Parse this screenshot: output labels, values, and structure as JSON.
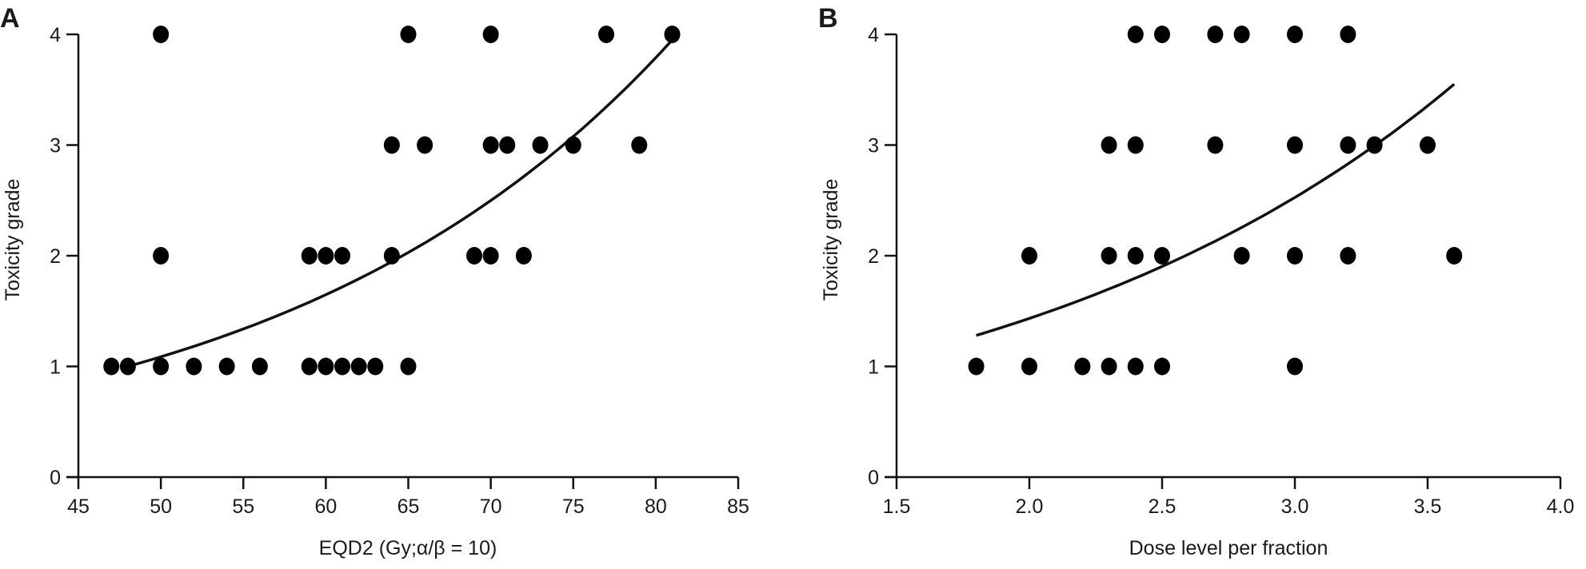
{
  "chart_data": [
    {
      "type": "scatter",
      "panel_label": "A",
      "xlabel": "EQD2 (Gy;α/β = 10)",
      "ylabel": "Toxicity grade",
      "xlim": [
        45,
        85
      ],
      "ylim": [
        0,
        4
      ],
      "xticks": [
        "45",
        "50",
        "55",
        "60",
        "65",
        "70",
        "75",
        "80",
        "85"
      ],
      "yticks": [
        "0",
        "1",
        "2",
        "3",
        "4"
      ],
      "grid": false,
      "points": [
        [
          50,
          4
        ],
        [
          65,
          4
        ],
        [
          70,
          4
        ],
        [
          77,
          4
        ],
        [
          81,
          4
        ],
        [
          64,
          3
        ],
        [
          66,
          3
        ],
        [
          70,
          3
        ],
        [
          71,
          3
        ],
        [
          73,
          3
        ],
        [
          75,
          3
        ],
        [
          79,
          3
        ],
        [
          50,
          2
        ],
        [
          59,
          2
        ],
        [
          60,
          2
        ],
        [
          61,
          2
        ],
        [
          64,
          2
        ],
        [
          69,
          2
        ],
        [
          70,
          2
        ],
        [
          72,
          2
        ],
        [
          47,
          1
        ],
        [
          48,
          1
        ],
        [
          50,
          1
        ],
        [
          52,
          1
        ],
        [
          54,
          1
        ],
        [
          56,
          1
        ],
        [
          59,
          1
        ],
        [
          60,
          1
        ],
        [
          61,
          1
        ],
        [
          62,
          1
        ],
        [
          63,
          1
        ],
        [
          65,
          1
        ]
      ],
      "fit": {
        "type": "exponential",
        "x_range": [
          48,
          81
        ],
        "y_start": 1.0,
        "y_end": 3.95
      }
    },
    {
      "type": "scatter",
      "panel_label": "B",
      "xlabel": "Dose level per fraction",
      "ylabel": "Toxicity grade",
      "xlim": [
        1.5,
        4.0
      ],
      "ylim": [
        0,
        4
      ],
      "xticks": [
        "1.5",
        "2.0",
        "2.5",
        "3.0",
        "3.5",
        "4.0"
      ],
      "yticks": [
        "0",
        "1",
        "2",
        "3",
        "4"
      ],
      "grid": false,
      "points": [
        [
          2.4,
          4
        ],
        [
          2.5,
          4
        ],
        [
          2.7,
          4
        ],
        [
          2.8,
          4
        ],
        [
          3.0,
          4
        ],
        [
          3.2,
          4
        ],
        [
          2.3,
          3
        ],
        [
          2.4,
          3
        ],
        [
          2.7,
          3
        ],
        [
          3.0,
          3
        ],
        [
          3.2,
          3
        ],
        [
          3.3,
          3
        ],
        [
          3.5,
          3
        ],
        [
          2.0,
          2
        ],
        [
          2.3,
          2
        ],
        [
          2.4,
          2
        ],
        [
          2.5,
          2
        ],
        [
          2.8,
          2
        ],
        [
          3.0,
          2
        ],
        [
          3.2,
          2
        ],
        [
          3.6,
          2
        ],
        [
          1.8,
          1
        ],
        [
          2.0,
          1
        ],
        [
          2.2,
          1
        ],
        [
          2.3,
          1
        ],
        [
          2.4,
          1
        ],
        [
          2.5,
          1
        ],
        [
          3.0,
          1
        ]
      ],
      "fit": {
        "type": "exponential",
        "x_range": [
          1.8,
          3.6
        ],
        "y_start": 1.28,
        "y_end": 3.55
      }
    }
  ]
}
